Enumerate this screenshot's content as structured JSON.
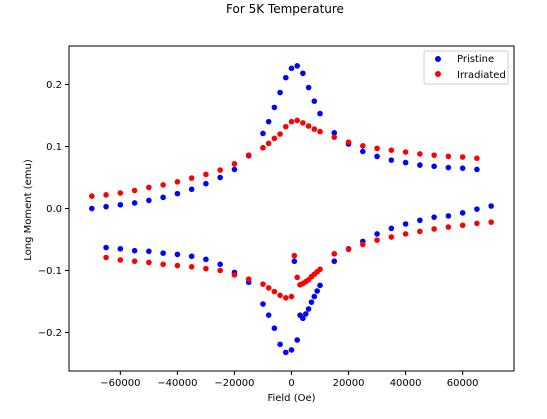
{
  "chart_data": {
    "type": "scatter",
    "title": "For 5K Temperature",
    "xlabel": "Field (Oe)",
    "ylabel": "Long Moment (emu)",
    "xlim": [
      -78000,
      78000
    ],
    "ylim": [
      -0.262,
      0.262
    ],
    "xticks": [
      -60000,
      -40000,
      -20000,
      0,
      20000,
      40000,
      60000
    ],
    "yticks": [
      -0.2,
      -0.1,
      0.0,
      0.1,
      0.2
    ],
    "ytick_labels": [
      "−0.2",
      "−0.1",
      "0.0",
      "0.1",
      "0.2"
    ],
    "xtick_labels": [
      "−60000",
      "−40000",
      "−20000",
      "0",
      "20000",
      "40000",
      "60000"
    ],
    "grid": false,
    "legend_position": "top-right",
    "series": [
      {
        "name": "Pristine",
        "color": "#0000ff",
        "points": [
          [
            -70000,
            0.0
          ],
          [
            -65000,
            0.003
          ],
          [
            -60000,
            0.006
          ],
          [
            -55000,
            0.009
          ],
          [
            -50000,
            0.013
          ],
          [
            -45000,
            0.018
          ],
          [
            -40000,
            0.024
          ],
          [
            -35000,
            0.031
          ],
          [
            -30000,
            0.04
          ],
          [
            -25000,
            0.05
          ],
          [
            -20000,
            0.063
          ],
          [
            -15000,
            0.085
          ],
          [
            -10000,
            0.121
          ],
          [
            -8000,
            0.14
          ],
          [
            -6000,
            0.163
          ],
          [
            -4000,
            0.187
          ],
          [
            -2000,
            0.211
          ],
          [
            0,
            0.226
          ],
          [
            2000,
            0.23
          ],
          [
            4000,
            0.218
          ],
          [
            6000,
            0.195
          ],
          [
            8000,
            0.173
          ],
          [
            10000,
            0.153
          ],
          [
            15000,
            0.122
          ],
          [
            20000,
            0.104
          ],
          [
            25000,
            0.092
          ],
          [
            30000,
            0.084
          ],
          [
            35000,
            0.078
          ],
          [
            40000,
            0.074
          ],
          [
            45000,
            0.07
          ],
          [
            50000,
            0.068
          ],
          [
            55000,
            0.066
          ],
          [
            60000,
            0.065
          ],
          [
            65000,
            0.063
          ],
          [
            70000,
            0.004
          ],
          [
            65000,
            -0.001
          ],
          [
            60000,
            -0.007
          ],
          [
            55000,
            -0.012
          ],
          [
            50000,
            -0.014
          ],
          [
            45000,
            -0.019
          ],
          [
            40000,
            -0.025
          ],
          [
            35000,
            -0.032
          ],
          [
            30000,
            -0.041
          ],
          [
            25000,
            -0.053
          ],
          [
            20000,
            -0.065
          ],
          [
            15000,
            -0.085
          ],
          [
            10000,
            -0.124
          ],
          [
            9000,
            -0.133
          ],
          [
            8000,
            -0.142
          ],
          [
            7000,
            -0.151
          ],
          [
            6000,
            -0.162
          ],
          [
            5000,
            -0.17
          ],
          [
            4000,
            -0.177
          ],
          [
            3000,
            -0.172
          ],
          [
            2000,
            -0.212
          ],
          [
            1000,
            -0.085
          ],
          [
            0,
            -0.228
          ],
          [
            -2000,
            -0.232
          ],
          [
            -4000,
            -0.219
          ],
          [
            -6000,
            -0.193
          ],
          [
            -8000,
            -0.172
          ],
          [
            -10000,
            -0.154
          ],
          [
            -15000,
            -0.119
          ],
          [
            -20000,
            -0.103
          ],
          [
            -25000,
            -0.09
          ],
          [
            -30000,
            -0.082
          ],
          [
            -35000,
            -0.077
          ],
          [
            -40000,
            -0.074
          ],
          [
            -45000,
            -0.072
          ],
          [
            -50000,
            -0.069
          ],
          [
            -55000,
            -0.068
          ],
          [
            -60000,
            -0.065
          ],
          [
            -65000,
            -0.063
          ]
        ]
      },
      {
        "name": "Irradiated",
        "color": "#ff0000",
        "points": [
          [
            -70000,
            0.02
          ],
          [
            -65000,
            0.022
          ],
          [
            -60000,
            0.025
          ],
          [
            -55000,
            0.029
          ],
          [
            -50000,
            0.034
          ],
          [
            -45000,
            0.038
          ],
          [
            -40000,
            0.043
          ],
          [
            -35000,
            0.049
          ],
          [
            -30000,
            0.055
          ],
          [
            -25000,
            0.062
          ],
          [
            -20000,
            0.072
          ],
          [
            -15000,
            0.086
          ],
          [
            -10000,
            0.098
          ],
          [
            -8000,
            0.105
          ],
          [
            -6000,
            0.113
          ],
          [
            -4000,
            0.12
          ],
          [
            -2000,
            0.132
          ],
          [
            0,
            0.14
          ],
          [
            2000,
            0.142
          ],
          [
            4000,
            0.138
          ],
          [
            6000,
            0.133
          ],
          [
            8000,
            0.128
          ],
          [
            10000,
            0.124
          ],
          [
            15000,
            0.115
          ],
          [
            20000,
            0.107
          ],
          [
            25000,
            0.101
          ],
          [
            30000,
            0.097
          ],
          [
            35000,
            0.094
          ],
          [
            40000,
            0.091
          ],
          [
            45000,
            0.088
          ],
          [
            50000,
            0.086
          ],
          [
            55000,
            0.084
          ],
          [
            60000,
            0.083
          ],
          [
            65000,
            0.081
          ],
          [
            70000,
            -0.022
          ],
          [
            65000,
            -0.024
          ],
          [
            60000,
            -0.027
          ],
          [
            55000,
            -0.03
          ],
          [
            50000,
            -0.033
          ],
          [
            45000,
            -0.037
          ],
          [
            40000,
            -0.041
          ],
          [
            35000,
            -0.046
          ],
          [
            30000,
            -0.051
          ],
          [
            25000,
            -0.058
          ],
          [
            20000,
            -0.066
          ],
          [
            15000,
            -0.073
          ],
          [
            10000,
            -0.098
          ],
          [
            9000,
            -0.102
          ],
          [
            8000,
            -0.106
          ],
          [
            7000,
            -0.11
          ],
          [
            6000,
            -0.115
          ],
          [
            5000,
            -0.118
          ],
          [
            4000,
            -0.121
          ],
          [
            3000,
            -0.123
          ],
          [
            2000,
            -0.111
          ],
          [
            1000,
            -0.076
          ],
          [
            0,
            -0.142
          ],
          [
            -2000,
            -0.144
          ],
          [
            -4000,
            -0.14
          ],
          [
            -6000,
            -0.134
          ],
          [
            -8000,
            -0.128
          ],
          [
            -10000,
            -0.122
          ],
          [
            -15000,
            -0.114
          ],
          [
            -20000,
            -0.107
          ],
          [
            -25000,
            -0.1
          ],
          [
            -30000,
            -0.097
          ],
          [
            -35000,
            -0.094
          ],
          [
            -40000,
            -0.092
          ],
          [
            -45000,
            -0.09
          ],
          [
            -50000,
            -0.087
          ],
          [
            -55000,
            -0.085
          ],
          [
            -60000,
            -0.083
          ],
          [
            -65000,
            -0.079
          ]
        ]
      }
    ]
  }
}
